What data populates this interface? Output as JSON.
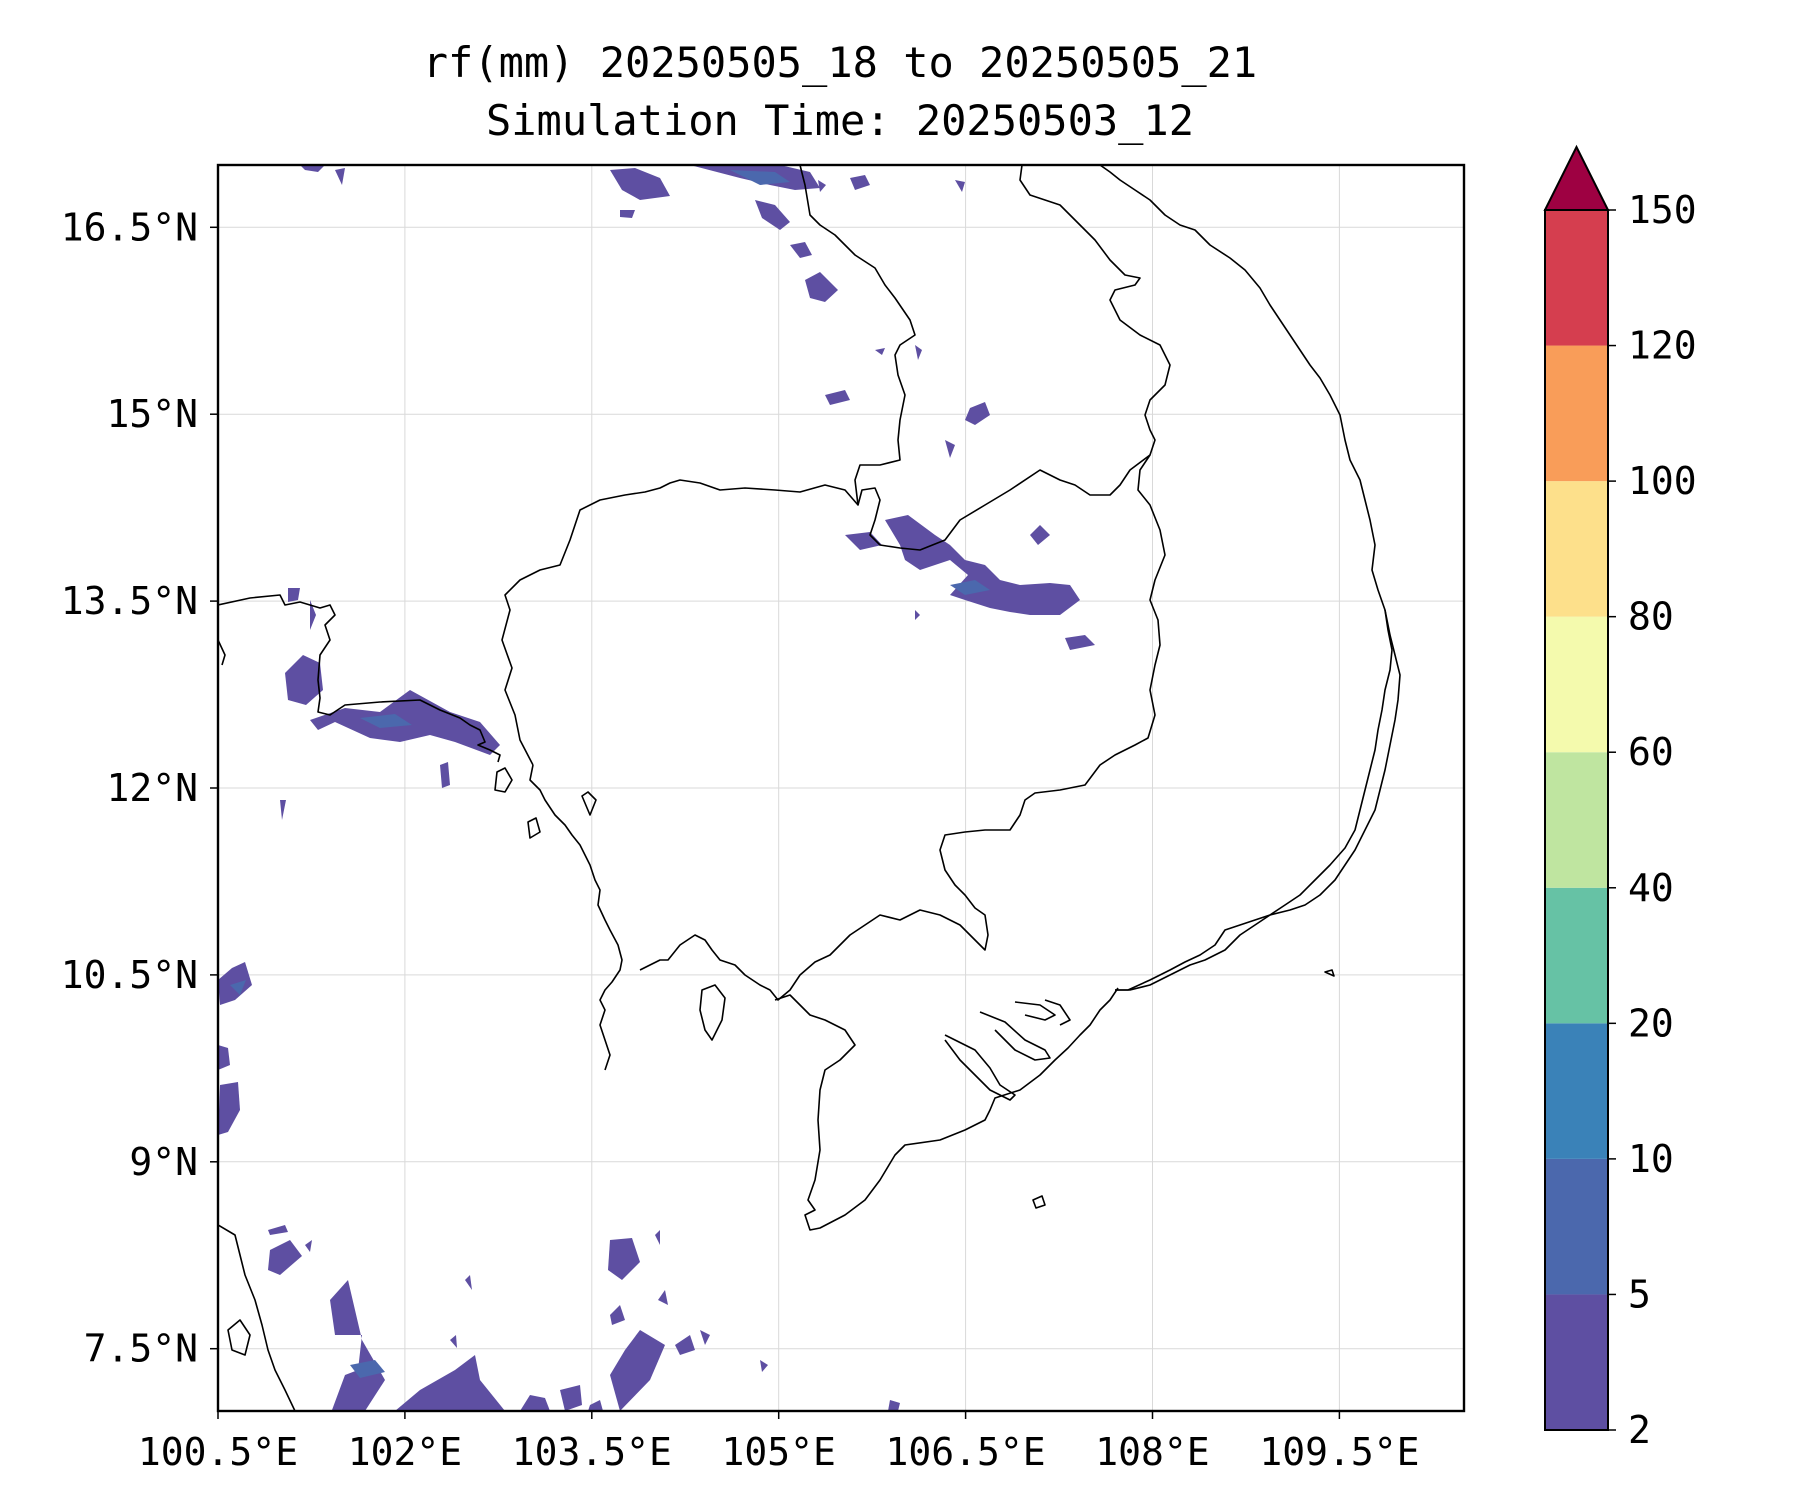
{
  "title": {
    "line1": "rf(mm) 20250505_18 to 20250505_21",
    "line2": "Simulation Time: 20250503_12"
  },
  "map": {
    "lon_range": [
      100.5,
      110.5
    ],
    "lat_range": [
      7.0,
      17.0
    ],
    "lon_ticks": [
      {
        "value": 100.5,
        "label": "100.5°E"
      },
      {
        "value": 102.0,
        "label": "102°E"
      },
      {
        "value": 103.5,
        "label": "103.5°E"
      },
      {
        "value": 105.0,
        "label": "105°E"
      },
      {
        "value": 106.5,
        "label": "106.5°E"
      },
      {
        "value": 108.0,
        "label": "108°E"
      },
      {
        "value": 109.5,
        "label": "109.5°E"
      }
    ],
    "lat_ticks": [
      {
        "value": 16.5,
        "label": "16.5°N"
      },
      {
        "value": 15.0,
        "label": "15°N"
      },
      {
        "value": 13.5,
        "label": "13.5°N"
      },
      {
        "value": 12.0,
        "label": "12°N"
      },
      {
        "value": 10.5,
        "label": "10.5°N"
      },
      {
        "value": 9.0,
        "label": "9°N"
      },
      {
        "value": 7.5,
        "label": "7.5°N"
      }
    ],
    "gridlines": true,
    "coastline_color": "#000000",
    "rain_color_low": "#5e4fa2",
    "rain_color_mid": "#4b68ad"
  },
  "colorbar": {
    "levels": [
      {
        "value": "2",
        "color": "#5e4fa2"
      },
      {
        "value": "5",
        "color": "#4b68ad"
      },
      {
        "value": "10",
        "color": "#3a82b8"
      },
      {
        "value": "20",
        "color": "#66c2a5"
      },
      {
        "value": "40",
        "color": "#bfe5a0"
      },
      {
        "value": "60",
        "color": "#f4faad"
      },
      {
        "value": "80",
        "color": "#fde08b"
      },
      {
        "value": "100",
        "color": "#f99d59"
      },
      {
        "value": "120",
        "color": "#d53e4f"
      },
      {
        "value": "150",
        "color": "#9e0142"
      }
    ],
    "extend": "max"
  }
}
